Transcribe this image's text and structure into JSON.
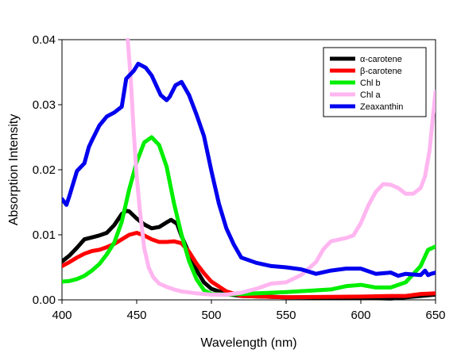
{
  "chart_data": {
    "type": "line",
    "xlabel": "Wavelength (nm)",
    "ylabel": "Absorption Intensity",
    "xlim": [
      400,
      650
    ],
    "ylim": [
      0,
      0.04
    ],
    "x_ticks": [
      400,
      450,
      500,
      550,
      600,
      650
    ],
    "x_tick_labels": [
      "400",
      "450",
      "500",
      "550",
      "600",
      "650"
    ],
    "y_ticks": [
      0,
      0.01,
      0.02,
      0.03,
      0.04
    ],
    "y_tick_labels": [
      "0.00",
      "0.01",
      "0.02",
      "0.03",
      "0.04"
    ],
    "grid": false,
    "legend_position": "top-right",
    "series": [
      {
        "name": "α-carotene",
        "color": "#000000",
        "x": [
          400,
          405,
          410,
          415,
          420,
          425,
          430,
          435,
          440,
          443,
          445,
          450,
          455,
          460,
          465,
          470,
          473,
          477,
          480,
          485,
          490,
          495,
          500,
          510,
          520,
          550,
          600,
          620,
          640,
          650
        ],
        "y": [
          0.0059,
          0.0068,
          0.008,
          0.0093,
          0.0096,
          0.0099,
          0.0103,
          0.0115,
          0.0132,
          0.0137,
          0.0136,
          0.0125,
          0.0116,
          0.011,
          0.0112,
          0.0119,
          0.0123,
          0.0117,
          0.0098,
          0.0072,
          0.0046,
          0.0027,
          0.0017,
          0.0009,
          0.0006,
          0.0004,
          0.0003,
          0.0002,
          0.0006,
          0.0008
        ]
      },
      {
        "name": "β-carotene",
        "color": "#ff0000",
        "x": [
          400,
          405,
          410,
          415,
          420,
          425,
          430,
          435,
          440,
          445,
          450,
          455,
          460,
          465,
          470,
          475,
          480,
          485,
          490,
          495,
          500,
          510,
          520,
          550,
          600,
          620,
          630,
          640,
          650
        ],
        "y": [
          0.0052,
          0.0058,
          0.0065,
          0.0071,
          0.0075,
          0.0077,
          0.0081,
          0.0086,
          0.0093,
          0.01,
          0.0103,
          0.0099,
          0.0093,
          0.0089,
          0.0089,
          0.009,
          0.0087,
          0.0074,
          0.0056,
          0.0041,
          0.0028,
          0.0013,
          0.0006,
          0.0004,
          0.0005,
          0.0006,
          0.0006,
          0.0009,
          0.001
        ]
      },
      {
        "name": "Chl b",
        "color": "#00ee00",
        "x": [
          400,
          405,
          410,
          415,
          420,
          425,
          430,
          435,
          440,
          445,
          450,
          455,
          460,
          465,
          470,
          475,
          480,
          485,
          490,
          495,
          500,
          510,
          520,
          550,
          580,
          590,
          600,
          610,
          620,
          630,
          640,
          645,
          650
        ],
        "y": [
          0.0028,
          0.0029,
          0.0032,
          0.0037,
          0.0045,
          0.0055,
          0.007,
          0.0088,
          0.012,
          0.017,
          0.0212,
          0.0242,
          0.025,
          0.0238,
          0.0205,
          0.0148,
          0.01,
          0.006,
          0.0032,
          0.0015,
          0.0009,
          0.0008,
          0.0009,
          0.0012,
          0.0016,
          0.0021,
          0.0023,
          0.0019,
          0.0019,
          0.0027,
          0.0052,
          0.0077,
          0.0082
        ]
      },
      {
        "name": "Chl a",
        "color": "#ffb6f0",
        "x": [
          444,
          446,
          448,
          450,
          452,
          455,
          458,
          461,
          465,
          470,
          475,
          480,
          490,
          500,
          510,
          520,
          530,
          540,
          550,
          560,
          570,
          575,
          580,
          590,
          595,
          600,
          605,
          610,
          615,
          620,
          625,
          630,
          635,
          640,
          643,
          646,
          650
        ],
        "y": [
          0.04,
          0.034,
          0.026,
          0.019,
          0.014,
          0.008,
          0.005,
          0.0035,
          0.0025,
          0.002,
          0.0016,
          0.0013,
          0.001,
          0.0008,
          0.0008,
          0.0011,
          0.0017,
          0.0025,
          0.0027,
          0.0038,
          0.0058,
          0.0078,
          0.009,
          0.0095,
          0.0099,
          0.0118,
          0.0145,
          0.0166,
          0.0178,
          0.0177,
          0.0172,
          0.0163,
          0.0163,
          0.0172,
          0.019,
          0.023,
          0.032
        ]
      },
      {
        "name": "Zeaxanthin",
        "color": "#0000ee",
        "x": [
          400,
          403,
          405,
          410,
          415,
          418,
          420,
          425,
          430,
          435,
          440,
          443,
          448,
          451,
          456,
          460,
          466,
          470,
          472,
          476,
          480,
          485,
          490,
          495,
          500,
          505,
          510,
          515,
          520,
          530,
          540,
          550,
          560,
          570,
          580,
          590,
          600,
          610,
          620,
          625,
          630,
          640,
          643,
          645,
          647,
          650
        ],
        "y": [
          0.0155,
          0.0146,
          0.016,
          0.0198,
          0.021,
          0.0235,
          0.0245,
          0.0268,
          0.0282,
          0.0288,
          0.0297,
          0.034,
          0.0352,
          0.0363,
          0.0357,
          0.0345,
          0.0315,
          0.0307,
          0.0312,
          0.033,
          0.0335,
          0.0315,
          0.0285,
          0.0252,
          0.0198,
          0.0148,
          0.011,
          0.0085,
          0.0065,
          0.0057,
          0.0052,
          0.005,
          0.0047,
          0.004,
          0.0045,
          0.0048,
          0.0048,
          0.004,
          0.0042,
          0.0037,
          0.004,
          0.0038,
          0.0045,
          0.0038,
          0.004,
          0.0042
        ]
      }
    ]
  }
}
